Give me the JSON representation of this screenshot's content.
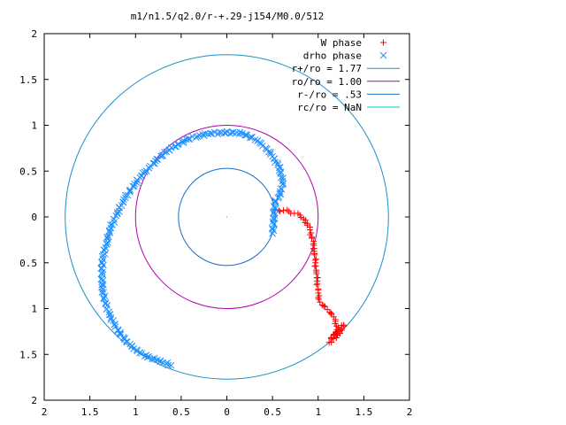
{
  "chart_data": {
    "type": "scatter",
    "title": "m1/n1.5/q2.0/r-+.29-j154/M0.0/512",
    "xlabel": "",
    "ylabel": "",
    "xlim": [
      2,
      -2
    ],
    "ylim": [
      -2,
      2
    ],
    "grid": false,
    "legend_position": "top-right",
    "x_tick_labels": [
      "2",
      "1.5",
      "1",
      "0.5",
      "0",
      "0.5",
      "1",
      "1.5",
      "2"
    ],
    "x_tick_values": [
      -2,
      -1.5,
      -1,
      -0.5,
      0,
      0.5,
      1,
      1.5,
      2
    ],
    "y_tick_labels": [
      "2",
      "1.5",
      "1",
      "0.5",
      "0",
      "0.5",
      "1",
      "1.5",
      "2"
    ],
    "y_tick_values": [
      2,
      1.5,
      1,
      0.5,
      0,
      -0.5,
      -1,
      -1.5,
      -2
    ],
    "series": [
      {
        "name": "W phase",
        "kind": "points",
        "marker": "plus",
        "color": "#ff0000",
        "points": [
          [
            0.53,
            0.08
          ],
          [
            0.57,
            0.07
          ],
          [
            0.62,
            0.07
          ],
          [
            0.68,
            0.06
          ],
          [
            0.74,
            0.04
          ],
          [
            0.8,
            0.02
          ],
          [
            0.84,
            -0.02
          ],
          [
            0.88,
            -0.07
          ],
          [
            0.91,
            -0.14
          ],
          [
            0.93,
            -0.22
          ],
          [
            0.95,
            -0.31
          ],
          [
            0.96,
            -0.4
          ],
          [
            0.97,
            -0.5
          ],
          [
            0.98,
            -0.6
          ],
          [
            0.99,
            -0.7
          ],
          [
            1.0,
            -0.8
          ],
          [
            1.0,
            -0.88
          ],
          [
            1.02,
            -0.93
          ],
          [
            1.06,
            -0.97
          ],
          [
            1.1,
            -1.01
          ],
          [
            1.14,
            -1.05
          ],
          [
            1.17,
            -1.09
          ],
          [
            1.19,
            -1.14
          ],
          [
            1.2,
            -1.19
          ],
          [
            1.22,
            -1.23
          ],
          [
            1.18,
            -1.28
          ],
          [
            1.14,
            -1.32
          ],
          [
            1.28,
            -1.18
          ],
          [
            1.24,
            -1.27
          ],
          [
            1.12,
            -1.37
          ]
        ]
      },
      {
        "name": "drho phase",
        "kind": "points",
        "marker": "cross",
        "color": "#1e90ff",
        "points": [
          [
            0.5,
            -0.18
          ],
          [
            0.53,
            0.17
          ],
          [
            0.57,
            0.22
          ],
          [
            0.6,
            0.3
          ],
          [
            0.61,
            0.39
          ],
          [
            0.59,
            0.49
          ],
          [
            0.56,
            0.57
          ],
          [
            0.5,
            0.66
          ],
          [
            0.44,
            0.74
          ],
          [
            0.36,
            0.81
          ],
          [
            0.27,
            0.87
          ],
          [
            0.17,
            0.91
          ],
          [
            0.06,
            0.92
          ],
          [
            -0.06,
            0.92
          ],
          [
            -0.18,
            0.91
          ],
          [
            -0.3,
            0.89
          ],
          [
            -0.42,
            0.85
          ],
          [
            -0.54,
            0.79
          ],
          [
            -0.66,
            0.71
          ],
          [
            -0.78,
            0.61
          ],
          [
            -0.9,
            0.49
          ],
          [
            -1.01,
            0.36
          ],
          [
            -1.11,
            0.21
          ],
          [
            -1.2,
            0.05
          ],
          [
            -1.27,
            -0.12
          ],
          [
            -1.32,
            -0.29
          ],
          [
            -1.36,
            -0.46
          ],
          [
            -1.37,
            -0.62
          ],
          [
            -1.36,
            -0.79
          ],
          [
            -1.33,
            -0.95
          ],
          [
            -1.27,
            -1.1
          ],
          [
            -1.19,
            -1.24
          ],
          [
            -1.1,
            -1.36
          ],
          [
            -0.98,
            -1.46
          ],
          [
            -0.87,
            -1.53
          ],
          [
            -0.76,
            -1.56
          ],
          [
            -0.61,
            -1.62
          ]
        ]
      },
      {
        "name": "r+/ro = 1.77",
        "kind": "circle",
        "r": 1.77,
        "color": "#1a8fc9"
      },
      {
        "name": "ro/ro = 1.00",
        "kind": "circle",
        "r": 1.0,
        "color": "#b000b0"
      },
      {
        "name": "r-/ro = .53",
        "kind": "circle",
        "r": 0.53,
        "color": "#1a6fc9"
      },
      {
        "name": "rc/ro = NaN",
        "kind": "circle",
        "r": null,
        "color": "#00c8c8"
      }
    ]
  }
}
